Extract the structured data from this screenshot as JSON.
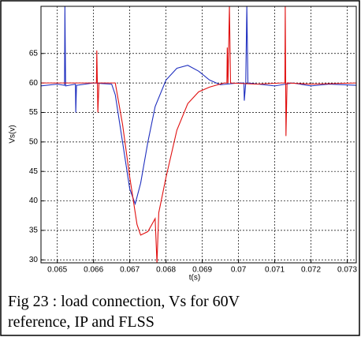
{
  "chart_data": {
    "type": "line",
    "caption": "Fig 23 : load connection, Vs for 60V reference, IP and FLSS",
    "xlabel": "t(s)",
    "ylabel": "Vs(v)",
    "xlim": [
      0.06455,
      0.07325
    ],
    "ylim": [
      29.5,
      73
    ],
    "xticks": [
      0.065,
      0.066,
      0.067,
      0.068,
      0.069,
      0.07,
      0.071,
      0.072,
      0.073
    ],
    "yticks": [
      30,
      35,
      40,
      45,
      50,
      55,
      60,
      65
    ],
    "grid": true,
    "series": [
      {
        "name": "IP",
        "color": "#1f2fbf",
        "x": [
          0.06455,
          0.065,
          0.0652,
          0.06521,
          0.06523,
          0.0655,
          0.06551,
          0.06553,
          0.066,
          0.0665,
          0.0666,
          0.0668,
          0.067,
          0.06715,
          0.0673,
          0.0675,
          0.0677,
          0.068,
          0.0683,
          0.0686,
          0.0689,
          0.0692,
          0.0695,
          0.07,
          0.07015,
          0.07016,
          0.0702,
          0.07023,
          0.07026,
          0.071,
          0.0715,
          0.072,
          0.0725,
          0.07325
        ],
        "values": [
          59.5,
          59.8,
          59.6,
          73,
          59.5,
          59.8,
          55,
          59.6,
          60,
          59.8,
          58,
          50,
          42,
          39.5,
          43,
          50,
          56,
          60.5,
          62.5,
          63,
          62,
          60.5,
          59.7,
          60,
          60,
          57,
          60,
          73,
          60,
          59.5,
          60,
          59.5,
          59.8,
          59.6
        ]
      },
      {
        "name": "FLSS",
        "color": "#e01010",
        "x": [
          0.06455,
          0.0658,
          0.06608,
          0.06609,
          0.06612,
          0.06615,
          0.0664,
          0.0666,
          0.0668,
          0.067,
          0.0672,
          0.0673,
          0.0675,
          0.0677,
          0.06775,
          0.0678,
          0.068,
          0.0683,
          0.0686,
          0.0689,
          0.0692,
          0.0696,
          0.06968,
          0.06969,
          0.06971,
          0.06975,
          0.06978,
          0.0705,
          0.0712,
          0.07128,
          0.07129,
          0.07131,
          0.07134,
          0.072,
          0.07325
        ],
        "values": [
          60,
          60,
          60,
          65.5,
          55,
          60,
          60,
          60,
          53,
          44,
          36,
          34.2,
          34.8,
          37,
          29.5,
          38,
          44,
          52,
          56.5,
          58.5,
          59.3,
          60,
          60,
          66,
          60,
          73,
          60,
          59.8,
          60,
          60,
          73,
          51,
          60,
          59.8,
          60
        ]
      }
    ]
  }
}
